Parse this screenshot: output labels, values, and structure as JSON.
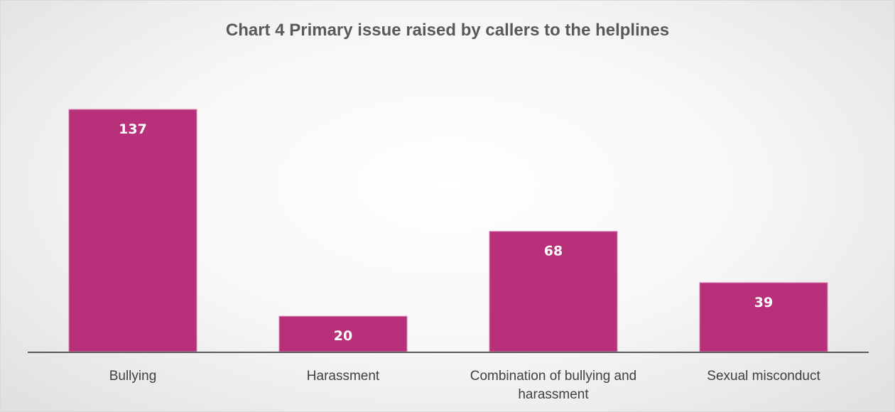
{
  "chart_data": {
    "type": "bar",
    "title": "Chart 4 Primary issue raised by callers to the helplines",
    "categories": [
      [
        "Bullying"
      ],
      [
        "Harassment"
      ],
      [
        "Combination of bullying and",
        "harassment"
      ],
      [
        "Sexual misconduct"
      ]
    ],
    "values": [
      137,
      20,
      68,
      39
    ],
    "data_labels": [
      "137",
      "20",
      "68",
      "39"
    ],
    "xlabel": "",
    "ylabel": "",
    "ylim": [
      0,
      140
    ],
    "grid": false,
    "legend": "none",
    "colors": {
      "bar": "#b8307a",
      "bar_edge": "#d987b3",
      "axis": "#595959",
      "title": "#595959",
      "category_text": "#404040",
      "data_label": "#ffffff"
    }
  }
}
